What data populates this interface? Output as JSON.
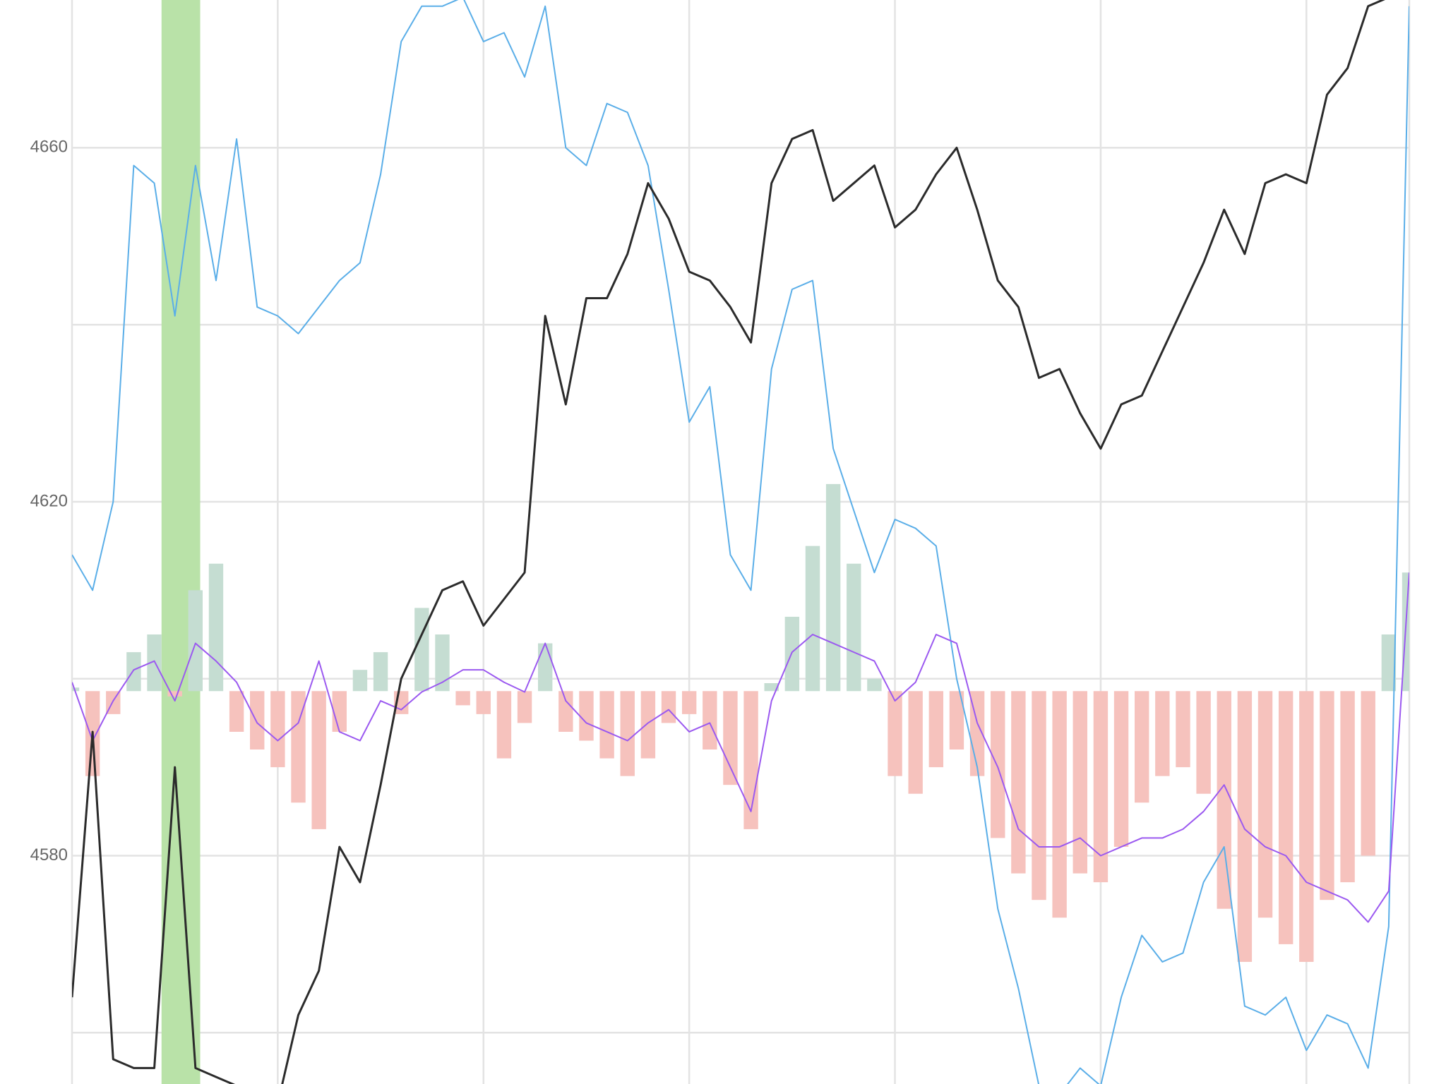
{
  "chart_data": {
    "type": "line",
    "x": [
      0,
      1,
      2,
      3,
      4,
      5,
      6,
      7,
      8,
      9,
      10,
      11,
      12,
      13,
      14,
      15,
      16,
      17,
      18,
      19,
      20,
      21,
      22,
      23,
      24,
      25,
      26,
      27,
      28,
      29,
      30,
      31,
      32,
      33,
      34,
      35,
      36,
      37,
      38,
      39,
      40,
      41,
      42,
      43,
      44,
      45,
      46,
      47,
      48,
      49,
      50,
      51,
      52,
      53,
      54,
      55,
      56,
      57,
      58,
      59,
      60,
      61,
      62,
      63,
      64,
      65
    ],
    "xlim": [
      0,
      65
    ],
    "x_gridlines": [
      10,
      20,
      30,
      40,
      50,
      60,
      65
    ],
    "ylim": [
      4554.2,
      4676.7
    ],
    "yticks": [
      4580,
      4620,
      4660
    ],
    "minor_yticks": [
      4560,
      4600,
      4640
    ],
    "grid": true,
    "highlight": {
      "from": 4.35,
      "to": 6.23,
      "color": "#b9e2a8"
    },
    "bars": {
      "base": 4598.6,
      "up_color": "#c5ddd2",
      "down_color": "#f6c2bd",
      "values": [
        4599,
        4589,
        4596,
        4603,
        4605,
        4598,
        4610,
        4613,
        4594,
        4592,
        4590,
        4586,
        4583,
        4594,
        4601,
        4603,
        4596,
        4608,
        4605,
        4597,
        4596,
        4591,
        4595,
        4604,
        4594,
        4593,
        4591,
        4589,
        4591,
        4595,
        4596,
        4592,
        4588,
        4583,
        4599.5,
        4607,
        4615,
        4622,
        4613,
        4600,
        4589,
        4587,
        4590,
        4592,
        4589,
        4582,
        4578,
        4575,
        4573,
        4578,
        4577,
        4581,
        4586,
        4589,
        4590,
        4587,
        4574,
        4568,
        4573,
        4570,
        4568,
        4575,
        4577,
        4580,
        4605,
        4612
      ]
    },
    "series": [
      {
        "color": "#5aaee8",
        "width": 2,
        "values": [
          4614,
          4610,
          4620,
          4658,
          4656,
          4641,
          4658,
          4645,
          4661,
          4642,
          4641,
          4639,
          4642,
          4645,
          4647,
          4657,
          4672,
          4676,
          4676,
          4677,
          4672,
          4673,
          4668,
          4676,
          4660,
          4658,
          4665,
          4664,
          4658,
          4644,
          4629,
          4633,
          4614,
          4610,
          4635,
          4644,
          4645,
          4626,
          4619,
          4612,
          4618,
          4617,
          4615,
          4600,
          4590,
          4574,
          4565,
          4554,
          4553,
          4556,
          4554,
          4564,
          4571,
          4568,
          4569,
          4577,
          4581,
          4563,
          4562,
          4564,
          4558,
          4562,
          4561,
          4556,
          4572,
          4676
        ]
      },
      {
        "color": "#9b59f0",
        "width": 2,
        "values": [
          4599.6,
          4593,
          4597.5,
          4601,
          4602,
          4597.5,
          4604,
          4602,
          4599.6,
          4595,
          4593,
          4595,
          4602,
          4594,
          4593,
          4597.5,
          4596.5,
          4598.5,
          4599.6,
          4601,
          4601,
          4599.6,
          4598.5,
          4604,
          4597.5,
          4595,
          4594,
          4593,
          4595,
          4596.5,
          4594,
          4595,
          4590,
          4585,
          4597.5,
          4603,
          4605,
          4604,
          4603,
          4602,
          4597.5,
          4599.6,
          4605,
          4604,
          4595,
          4590,
          4583,
          4581,
          4581,
          4582,
          4580,
          4581,
          4582,
          4582,
          4583,
          4585,
          4588,
          4583,
          4581,
          4580,
          4577,
          4576,
          4575,
          4572.5,
          4576,
          4612
        ]
      },
      {
        "color": "#2b2b2b",
        "width": 3,
        "values": [
          4564,
          4594,
          4557,
          4556,
          4556,
          4590,
          4556,
          4555,
          4554,
          4552,
          4552,
          4562,
          4567,
          4581,
          4577,
          4588,
          4600,
          4605,
          4610,
          4611,
          4606,
          4609,
          4612,
          4641,
          4631,
          4643,
          4643,
          4648,
          4656,
          4652,
          4646,
          4645,
          4642,
          4638,
          4656,
          4661,
          4662,
          4654,
          4656,
          4658,
          4651,
          4653,
          4657,
          4660,
          4653,
          4645,
          4642,
          4634,
          4635,
          4630,
          4626,
          4631,
          4632,
          4637,
          4642,
          4647,
          4653,
          4648,
          4656,
          4657,
          4656,
          4666,
          4669,
          4676,
          4677,
          null
        ]
      }
    ]
  }
}
